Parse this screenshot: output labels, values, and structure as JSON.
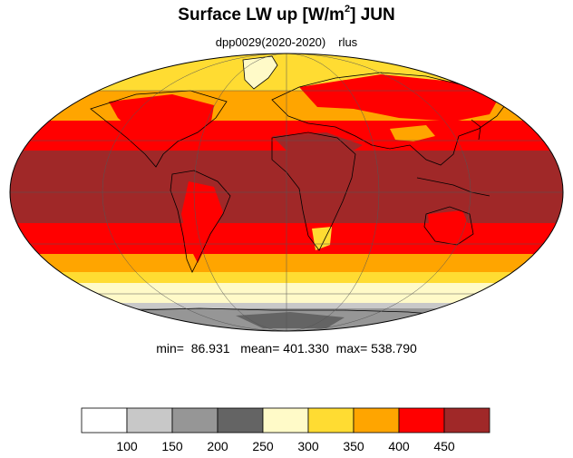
{
  "title": {
    "main": "Surface LW up [W/m",
    "sup": "2",
    "end": "]  JUN"
  },
  "subtitle": {
    "run": "dpp0029(2020-2020)",
    "variable": "rlus"
  },
  "stats": {
    "text": "min=  86.931   mean= 401.330  max= 538.790"
  },
  "colorbar": {
    "colors": [
      "#ffffff",
      "#c8c8c8",
      "#969696",
      "#646464",
      "#fffac8",
      "#ffdc32",
      "#ffa500",
      "#ff0000",
      "#a02828"
    ],
    "labels": [
      "100",
      "150",
      "200",
      "250",
      "300",
      "350",
      "400",
      "450"
    ]
  },
  "colors": {
    "ocean_tropic": "#a02828",
    "subtropic": "#ff0000",
    "midlat": "#ffa500",
    "highlat": "#ffdc32",
    "polar": "#fffac8",
    "antarctic_grey": "#969696",
    "antarctic_light": "#c8c8c8"
  }
}
